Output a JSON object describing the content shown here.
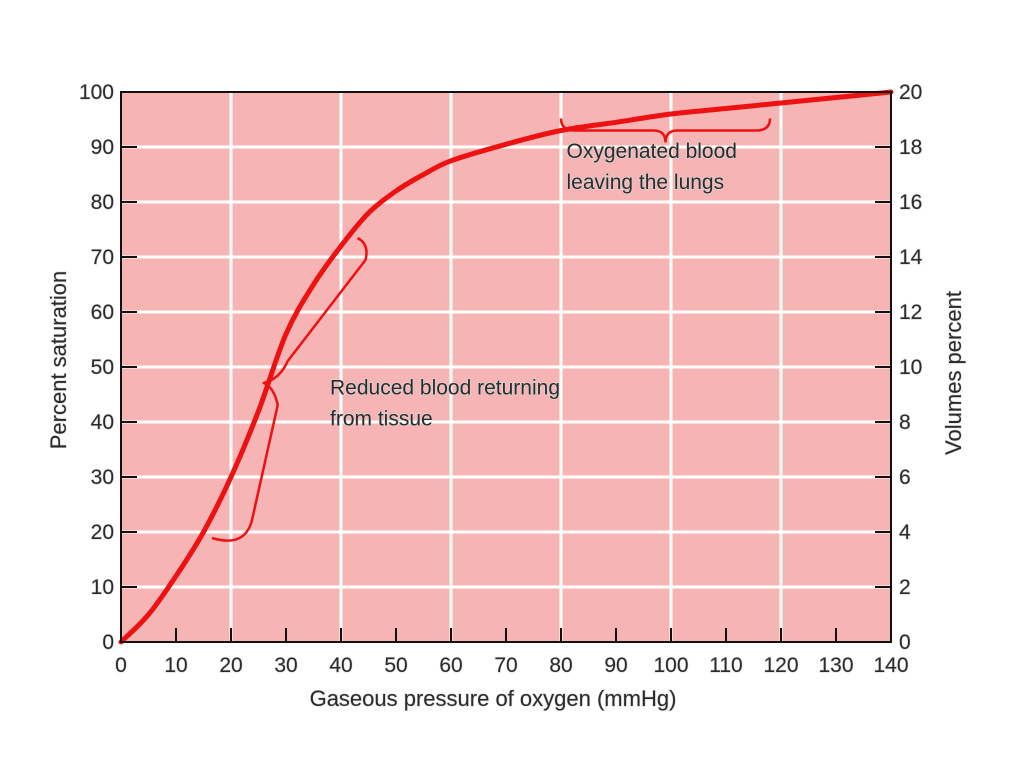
{
  "chart_data": {
    "type": "line",
    "title": "",
    "xlabel": "Gaseous pressure of oxygen (mmHg)",
    "ylabel": "Percent saturation",
    "y2label": "Volumes percent",
    "xlim": [
      0,
      140
    ],
    "ylim": [
      0,
      100
    ],
    "y2lim": [
      0,
      20
    ],
    "x_ticks": [
      "0",
      "10",
      "20",
      "30",
      "40",
      "50",
      "60",
      "70",
      "80",
      "90",
      "100",
      "110",
      "120",
      "130",
      "140"
    ],
    "y_ticks": [
      "0",
      "10",
      "20",
      "30",
      "40",
      "50",
      "60",
      "70",
      "80",
      "90",
      "100"
    ],
    "y2_ticks": [
      "0",
      "2",
      "4",
      "6",
      "8",
      "10",
      "12",
      "14",
      "16",
      "18",
      "20"
    ],
    "grid": true,
    "legend": "none",
    "colors": {
      "plot_background": "#f7b4b4",
      "curve": "#ee1111",
      "grid": "#ffffff",
      "axis": "#111111"
    },
    "series": [
      {
        "x": [
          0,
          5,
          10,
          15,
          20,
          25,
          30,
          35,
          40,
          45,
          50,
          55,
          60,
          70,
          80,
          90,
          100,
          110,
          120,
          130,
          140
        ],
        "y": [
          0,
          5,
          12,
          20,
          30,
          42,
          56,
          65,
          72,
          78,
          82,
          85,
          87.5,
          90.5,
          93,
          94.5,
          96,
          97,
          98,
          99,
          100
        ]
      }
    ],
    "annotations": [
      {
        "lines": [
          "Oxygenated blood",
          "leaving the lungs"
        ],
        "x": 81,
        "y": 88,
        "bracket": {
          "orientation": "horizontal",
          "from_x": 80,
          "to_x": 118,
          "at_y": 93
        }
      },
      {
        "lines": [
          "Reduced blood returning",
          "from tissue"
        ],
        "x": 38,
        "y": 45,
        "bracket": {
          "orientation": "diagonal",
          "from": [
            18,
            20
          ],
          "to": [
            43,
            72
          ]
        }
      }
    ]
  }
}
